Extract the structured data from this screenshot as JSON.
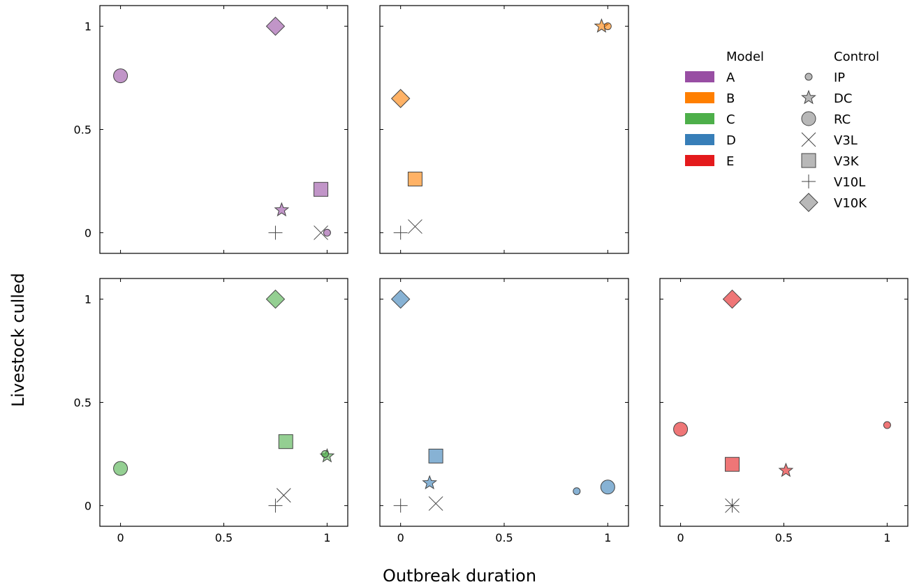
{
  "chart_data": {
    "type": "scatter",
    "xlabel": "Outbreak duration",
    "ylabel": "Livestock culled",
    "xlim": [
      -0.1,
      1.1
    ],
    "ylim": [
      -0.1,
      1.1
    ],
    "xticks": [
      "0",
      "0.5",
      "1"
    ],
    "yticks": [
      "0",
      "0.5",
      "1"
    ],
    "grid": false,
    "legend": {
      "placement": "top-right",
      "model_title": "Model",
      "control_title": "Control",
      "models": [
        {
          "name": "A",
          "color": "#984ea3"
        },
        {
          "name": "B",
          "color": "#ff7f00"
        },
        {
          "name": "C",
          "color": "#4daf4a"
        },
        {
          "name": "D",
          "color": "#377eb8"
        },
        {
          "name": "E",
          "color": "#e41a1c"
        }
      ],
      "controls": [
        {
          "name": "IP",
          "marker": "small-circle"
        },
        {
          "name": "DC",
          "marker": "star"
        },
        {
          "name": "RC",
          "marker": "circle"
        },
        {
          "name": "V3L",
          "marker": "x"
        },
        {
          "name": "V3K",
          "marker": "square"
        },
        {
          "name": "V10L",
          "marker": "plus"
        },
        {
          "name": "V10K",
          "marker": "diamond"
        }
      ]
    },
    "panels": [
      {
        "model": "A",
        "color": "#984ea3",
        "show_xticks": false,
        "show_yticks": true,
        "points": [
          {
            "control": "IP",
            "x": 1.0,
            "y": 0.0
          },
          {
            "control": "DC",
            "x": 0.78,
            "y": 0.11
          },
          {
            "control": "RC",
            "x": 0.0,
            "y": 0.76
          },
          {
            "control": "V3L",
            "x": 0.97,
            "y": 0.0
          },
          {
            "control": "V3K",
            "x": 0.97,
            "y": 0.21
          },
          {
            "control": "V10L",
            "x": 0.75,
            "y": 0.0
          },
          {
            "control": "V10K",
            "x": 0.75,
            "y": 1.0
          }
        ]
      },
      {
        "model": "B",
        "color": "#ff7f00",
        "show_xticks": false,
        "show_yticks": false,
        "points": [
          {
            "control": "IP",
            "x": 1.0,
            "y": 1.0
          },
          {
            "control": "DC",
            "x": 0.97,
            "y": 1.0
          },
          {
            "control": "V3L",
            "x": 0.07,
            "y": 0.03
          },
          {
            "control": "V3K",
            "x": 0.07,
            "y": 0.26
          },
          {
            "control": "V10L",
            "x": 0.0,
            "y": 0.0
          },
          {
            "control": "V10K",
            "x": 0.0,
            "y": 0.65
          }
        ]
      },
      {
        "model": "C",
        "color": "#4daf4a",
        "show_xticks": true,
        "show_yticks": true,
        "points": [
          {
            "control": "IP",
            "x": 0.99,
            "y": 0.25
          },
          {
            "control": "DC",
            "x": 1.0,
            "y": 0.24
          },
          {
            "control": "RC",
            "x": 0.0,
            "y": 0.18
          },
          {
            "control": "V3L",
            "x": 0.79,
            "y": 0.05
          },
          {
            "control": "V3K",
            "x": 0.8,
            "y": 0.31
          },
          {
            "control": "V10L",
            "x": 0.75,
            "y": 0.0
          },
          {
            "control": "V10K",
            "x": 0.75,
            "y": 1.0
          }
        ]
      },
      {
        "model": "D",
        "color": "#377eb8",
        "show_xticks": true,
        "show_yticks": false,
        "points": [
          {
            "control": "IP",
            "x": 0.85,
            "y": 0.07
          },
          {
            "control": "DC",
            "x": 0.14,
            "y": 0.11
          },
          {
            "control": "RC",
            "x": 1.0,
            "y": 0.09
          },
          {
            "control": "V3L",
            "x": 0.17,
            "y": 0.01
          },
          {
            "control": "V3K",
            "x": 0.17,
            "y": 0.24
          },
          {
            "control": "V10L",
            "x": 0.0,
            "y": 0.0
          },
          {
            "control": "V10K",
            "x": 0.0,
            "y": 1.0
          }
        ]
      },
      {
        "model": "E",
        "color": "#e41a1c",
        "show_xticks": true,
        "show_yticks": false,
        "points": [
          {
            "control": "IP",
            "x": 1.0,
            "y": 0.39
          },
          {
            "control": "DC",
            "x": 0.51,
            "y": 0.17
          },
          {
            "control": "RC",
            "x": 0.0,
            "y": 0.37
          },
          {
            "control": "V3L",
            "x": 0.25,
            "y": 0.0
          },
          {
            "control": "V3K",
            "x": 0.25,
            "y": 0.2
          },
          {
            "control": "V10L",
            "x": 0.25,
            "y": 0.0
          },
          {
            "control": "V10K",
            "x": 0.25,
            "y": 1.0
          }
        ]
      }
    ]
  }
}
